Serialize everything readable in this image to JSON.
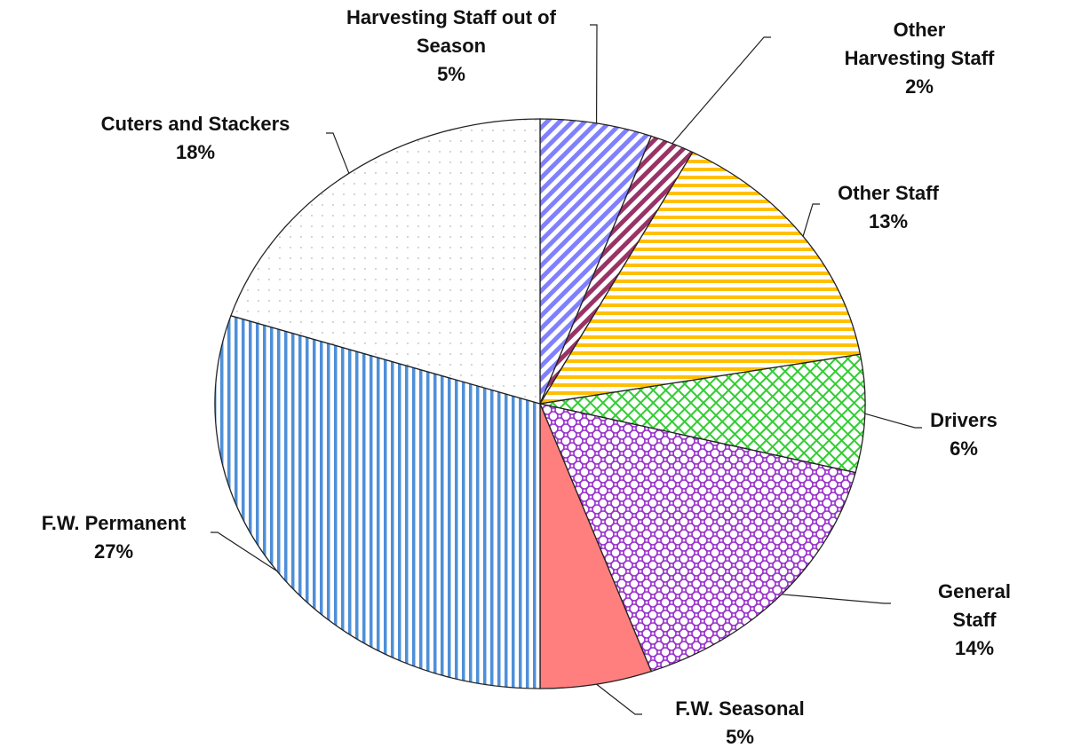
{
  "chart_data": {
    "type": "pie",
    "categories": [
      "Harvesting Staff out of Season",
      "Other Harvesting Staff",
      "Other Staff",
      "Drivers",
      "General Staff",
      "F.W. Seasonal",
      "F.W. Permanent",
      "Cuters and Stackers"
    ],
    "values": [
      5,
      2,
      13,
      6,
      14,
      5,
      27,
      18
    ],
    "value_labels": [
      "5%",
      "2%",
      "13%",
      "6%",
      "14%",
      "5%",
      "27%",
      "18%"
    ],
    "colors": [
      "#8080ff",
      "#993366",
      "#ffc000",
      "#33cc33",
      "#9933cc",
      "#ff7f7f",
      "#4f8fd8",
      "#c8c8c8"
    ],
    "patterns": [
      "diagonal",
      "diagonal",
      "horizontal",
      "crosshatch",
      "scales",
      "solid",
      "vertical",
      "dots"
    ]
  }
}
